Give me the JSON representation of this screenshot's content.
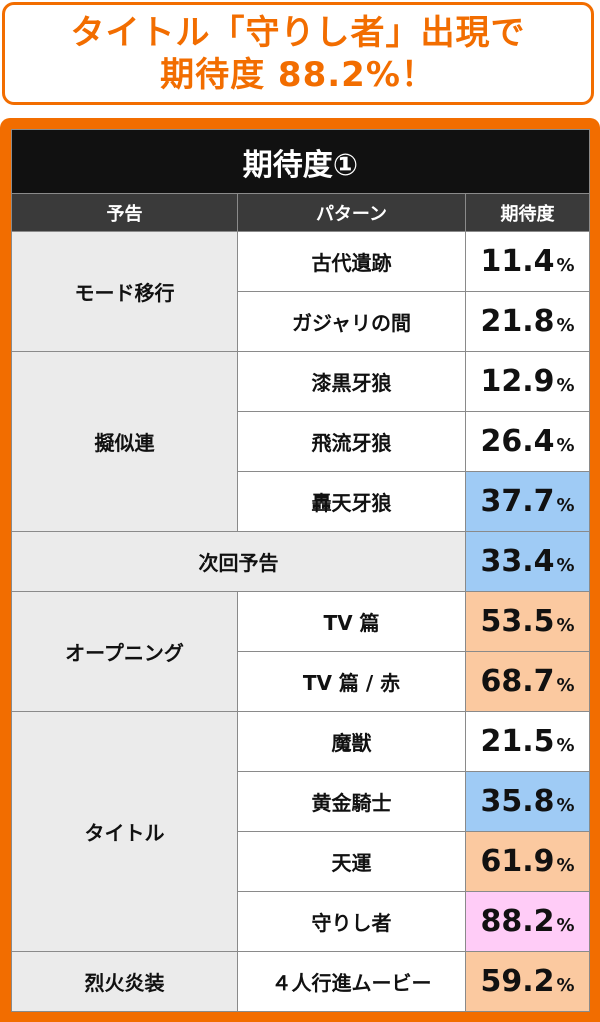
{
  "headline": {
    "line1": "タイトル「守りし者」出現で",
    "line2": "期待度 88.2%！"
  },
  "table": {
    "title": "期待度①",
    "headers": {
      "notice": "予告",
      "pattern": "パターン",
      "expectation": "期待度"
    },
    "unit": "%",
    "colors": {
      "blue": "#9fcbf5",
      "orange": "#fbc9a0",
      "pink": "#ffccf7",
      "white": "#ffffff"
    },
    "groups": [
      {
        "label": "モード移行",
        "rows": [
          {
            "pattern": "古代遺跡",
            "value": "11.4",
            "color": "white"
          },
          {
            "pattern": "ガジャリの間",
            "value": "21.8",
            "color": "white"
          }
        ]
      },
      {
        "label": "擬似連",
        "rows": [
          {
            "pattern": "漆黒牙狼",
            "value": "12.9",
            "color": "white"
          },
          {
            "pattern": "飛流牙狼",
            "value": "26.4",
            "color": "white"
          },
          {
            "pattern": "轟天牙狼",
            "value": "37.7",
            "color": "blue"
          }
        ]
      },
      {
        "label": "次回予告",
        "merged": true,
        "rows": [
          {
            "pattern": "",
            "value": "33.4",
            "color": "blue"
          }
        ]
      },
      {
        "label": "オープニング",
        "rows": [
          {
            "pattern": "TV 篇",
            "value": "53.5",
            "color": "orange"
          },
          {
            "pattern": "TV 篇 / 赤",
            "value": "68.7",
            "color": "orange"
          }
        ]
      },
      {
        "label": "タイトル",
        "rows": [
          {
            "pattern": "魔獣",
            "value": "21.5",
            "color": "white"
          },
          {
            "pattern": "黄金騎士",
            "value": "35.8",
            "color": "blue"
          },
          {
            "pattern": "天運",
            "value": "61.9",
            "color": "orange"
          },
          {
            "pattern": "守りし者",
            "value": "88.2",
            "color": "pink"
          }
        ]
      },
      {
        "label": "烈火炎装",
        "rows": [
          {
            "pattern": "４人行進ムービー",
            "value": "59.2",
            "color": "orange"
          }
        ]
      }
    ]
  }
}
